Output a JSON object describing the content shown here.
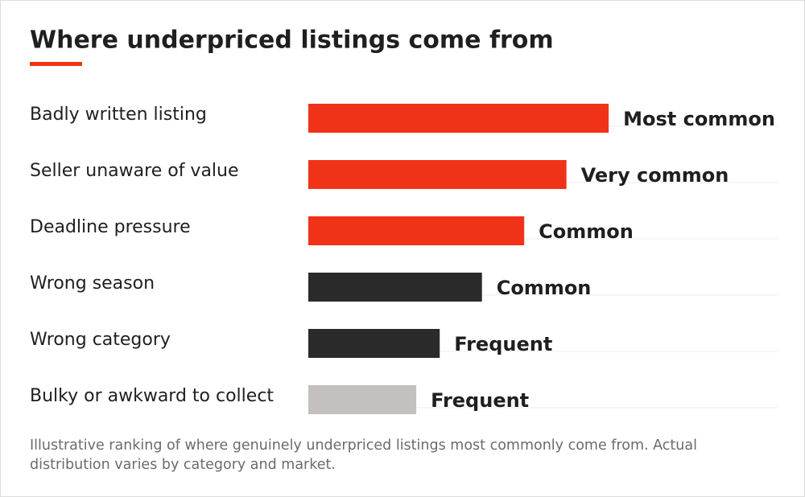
{
  "chart_data": {
    "type": "bar",
    "orientation": "horizontal",
    "title": "Where underpriced listings come from",
    "categories": [
      "Badly written listing",
      "Seller unaware of value",
      "Deadline pressure",
      "Wrong season",
      "Wrong category",
      "Bulky or awkward to collect"
    ],
    "values": [
      64,
      55,
      46,
      37,
      28,
      23
    ],
    "value_labels": [
      "Most common",
      "Very common",
      "Common",
      "Common",
      "Frequent",
      "Frequent"
    ],
    "colors": [
      "#f03318",
      "#f03318",
      "#f03318",
      "#2a2a2a",
      "#2a2a2a",
      "#c4c0bd"
    ],
    "xlim": [
      0,
      100
    ],
    "note": "Illustrative ranking of where genuinely underpriced listings most commonly come from. Actual distribution varies by category and market."
  }
}
